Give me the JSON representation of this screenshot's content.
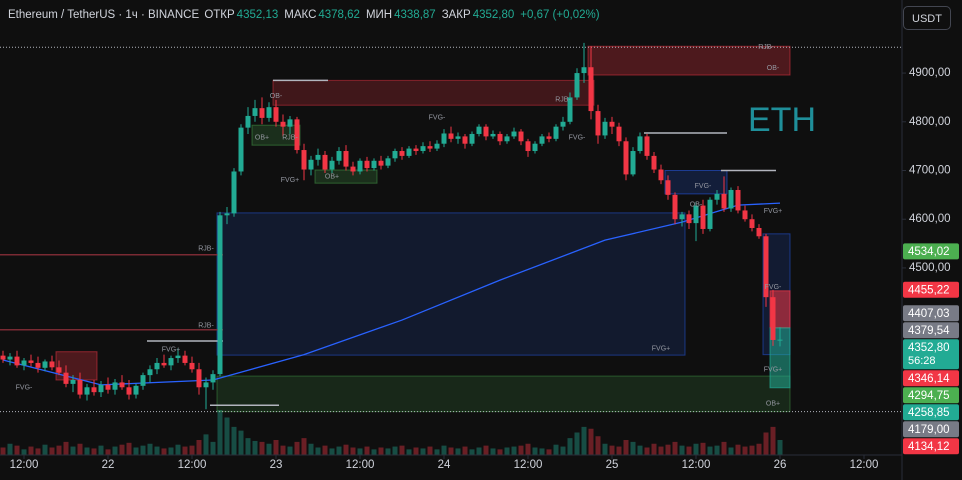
{
  "chart_data": {
    "type": "candlestick",
    "title": "Ethereum / TetherUS · 1ч · BINANCE",
    "ohlc_header": [
      {
        "label": "ОТКР",
        "value": "4352,13"
      },
      {
        "label": "МАКС",
        "value": "4378,62"
      },
      {
        "label": "МИН",
        "value": "4338,87"
      },
      {
        "label": "ЗАКР",
        "value": "4352,80"
      }
    ],
    "change": "+0,67 (+0,02%)",
    "currency_button": "USDT",
    "watermark": "ETH",
    "up_color": "#22ab94",
    "down_color": "#f23645",
    "ylim": [
      4116,
      5050
    ],
    "yticks": [
      {
        "value": 4500,
        "label": "4500,00"
      },
      {
        "value": 4600,
        "label": "4600,00"
      },
      {
        "value": 4700,
        "label": "4700,00"
      },
      {
        "value": 4800,
        "label": "4800,00"
      },
      {
        "value": 4900,
        "label": "4900,00"
      }
    ],
    "xticks": [
      {
        "value": 3,
        "label": "12:00"
      },
      {
        "value": 15,
        "label": "22"
      },
      {
        "value": 27,
        "label": "12:00"
      },
      {
        "value": 39,
        "label": "23"
      },
      {
        "value": 51,
        "label": "12:00"
      },
      {
        "value": 63,
        "label": "24"
      },
      {
        "value": 75,
        "label": "12:00"
      },
      {
        "value": 87,
        "label": "25"
      },
      {
        "value": 99,
        "label": "12:00"
      },
      {
        "value": 111,
        "label": "26"
      },
      {
        "value": 123,
        "label": "12:00"
      }
    ],
    "candles": [
      [
        4320,
        4330,
        4305,
        4312
      ],
      [
        4312,
        4325,
        4300,
        4318
      ],
      [
        4318,
        4330,
        4295,
        4300
      ],
      [
        4300,
        4315,
        4290,
        4310
      ],
      [
        4310,
        4322,
        4298,
        4305
      ],
      [
        4305,
        4318,
        4285,
        4295
      ],
      [
        4295,
        4312,
        4288,
        4308
      ],
      [
        4308,
        4320,
        4290,
        4296
      ],
      [
        4296,
        4310,
        4280,
        4285
      ],
      [
        4285,
        4300,
        4255,
        4262
      ],
      [
        4262,
        4280,
        4245,
        4270
      ],
      [
        4270,
        4285,
        4232,
        4240
      ],
      [
        4240,
        4262,
        4228,
        4255
      ],
      [
        4255,
        4270,
        4238,
        4245
      ],
      [
        4245,
        4268,
        4235,
        4260
      ],
      [
        4260,
        4275,
        4242,
        4250
      ],
      [
        4250,
        4272,
        4240,
        4265
      ],
      [
        4265,
        4280,
        4250,
        4255
      ],
      [
        4255,
        4270,
        4230,
        4240
      ],
      [
        4240,
        4262,
        4232,
        4258
      ],
      [
        4258,
        4285,
        4250,
        4280
      ],
      [
        4280,
        4300,
        4265,
        4292
      ],
      [
        4292,
        4315,
        4282,
        4305
      ],
      [
        4305,
        4322,
        4295,
        4300
      ],
      [
        4300,
        4320,
        4290,
        4315
      ],
      [
        4315,
        4335,
        4305,
        4320
      ],
      [
        4320,
        4330,
        4300,
        4305
      ],
      [
        4305,
        4318,
        4285,
        4292
      ],
      [
        4292,
        4305,
        4240,
        4255
      ],
      [
        4255,
        4275,
        4210,
        4265
      ],
      [
        4265,
        4290,
        4250,
        4282
      ],
      [
        4282,
        4615,
        4278,
        4608
      ],
      [
        4608,
        4625,
        4590,
        4612
      ],
      [
        4612,
        4705,
        4605,
        4698
      ],
      [
        4698,
        4795,
        4690,
        4788
      ],
      [
        4788,
        4830,
        4775,
        4812
      ],
      [
        4812,
        4845,
        4800,
        4828
      ],
      [
        4828,
        4850,
        4795,
        4808
      ],
      [
        4808,
        4840,
        4800,
        4830
      ],
      [
        4830,
        4845,
        4790,
        4800
      ],
      [
        4800,
        4815,
        4770,
        4790
      ],
      [
        4790,
        4812,
        4775,
        4805
      ],
      [
        4805,
        4810,
        4735,
        4742
      ],
      [
        4742,
        4755,
        4680,
        4702
      ],
      [
        4702,
        4730,
        4690,
        4722
      ],
      [
        4722,
        4745,
        4710,
        4732
      ],
      [
        4732,
        4740,
        4695,
        4702
      ],
      [
        4702,
        4728,
        4695,
        4720
      ],
      [
        4720,
        4748,
        4712,
        4740
      ],
      [
        4740,
        4752,
        4700,
        4708
      ],
      [
        4708,
        4718,
        4690,
        4698
      ],
      [
        4698,
        4725,
        4692,
        4720
      ],
      [
        4720,
        4728,
        4698,
        4705
      ],
      [
        4705,
        4725,
        4700,
        4720
      ],
      [
        4720,
        4730,
        4702,
        4710
      ],
      [
        4710,
        4730,
        4705,
        4725
      ],
      [
        4725,
        4745,
        4718,
        4740
      ],
      [
        4740,
        4748,
        4722,
        4730
      ],
      [
        4730,
        4750,
        4726,
        4745
      ],
      [
        4745,
        4752,
        4732,
        4740
      ],
      [
        4740,
        4758,
        4735,
        4750
      ],
      [
        4750,
        4760,
        4738,
        4745
      ],
      [
        4745,
        4762,
        4740,
        4755
      ],
      [
        4755,
        4785,
        4748,
        4776
      ],
      [
        4776,
        4790,
        4758,
        4765
      ],
      [
        4765,
        4778,
        4755,
        4770
      ],
      [
        4770,
        4775,
        4745,
        4755
      ],
      [
        4755,
        4780,
        4750,
        4775
      ],
      [
        4775,
        4795,
        4770,
        4790
      ],
      [
        4790,
        4795,
        4762,
        4770
      ],
      [
        4770,
        4782,
        4765,
        4775
      ],
      [
        4775,
        4780,
        4752,
        4760
      ],
      [
        4760,
        4775,
        4755,
        4770
      ],
      [
        4770,
        4788,
        4765,
        4780
      ],
      [
        4780,
        4785,
        4752,
        4760
      ],
      [
        4760,
        4765,
        4728,
        4740
      ],
      [
        4740,
        4760,
        4735,
        4755
      ],
      [
        4755,
        4775,
        4750,
        4770
      ],
      [
        4770,
        4778,
        4758,
        4765
      ],
      [
        4765,
        4795,
        4760,
        4790
      ],
      [
        4790,
        4810,
        4782,
        4800
      ],
      [
        4800,
        4860,
        4795,
        4850
      ],
      [
        4850,
        4910,
        4845,
        4900
      ],
      [
        4900,
        4962,
        4880,
        4912
      ],
      [
        4912,
        4955,
        4805,
        4822
      ],
      [
        4822,
        4835,
        4755,
        4772
      ],
      [
        4772,
        4808,
        4765,
        4800
      ],
      [
        4800,
        4810,
        4775,
        4790
      ],
      [
        4790,
        4798,
        4750,
        4760
      ],
      [
        4760,
        4768,
        4680,
        4692
      ],
      [
        4692,
        4748,
        4688,
        4740
      ],
      [
        4740,
        4778,
        4735,
        4770
      ],
      [
        4770,
        4775,
        4722,
        4730
      ],
      [
        4730,
        4738,
        4695,
        4702
      ],
      [
        4702,
        4712,
        4672,
        4680
      ],
      [
        4680,
        4690,
        4640,
        4650
      ],
      [
        4650,
        4655,
        4590,
        4600
      ],
      [
        4600,
        4615,
        4585,
        4610
      ],
      [
        4610,
        4618,
        4580,
        4592
      ],
      [
        4592,
        4635,
        4555,
        4628
      ],
      [
        4628,
        4640,
        4570,
        4580
      ],
      [
        4580,
        4645,
        4575,
        4640
      ],
      [
        4640,
        4660,
        4630,
        4652
      ],
      [
        4652,
        4688,
        4615,
        4622
      ],
      [
        4622,
        4665,
        4615,
        4660
      ],
      [
        4660,
        4668,
        4612,
        4618
      ],
      [
        4618,
        4628,
        4595,
        4600
      ],
      [
        4600,
        4610,
        4575,
        4582
      ],
      [
        4582,
        4590,
        4560,
        4565
      ],
      [
        4565,
        4570,
        4420,
        4440
      ],
      [
        4440,
        4455,
        4340,
        4352.13
      ],
      [
        4352.13,
        4378.62,
        4338.87,
        4352.8
      ]
    ],
    "volume": [
      8,
      12,
      10,
      6,
      9,
      7,
      11,
      8,
      10,
      14,
      9,
      12,
      8,
      7,
      10,
      6,
      9,
      11,
      13,
      8,
      10,
      12,
      9,
      7,
      8,
      11,
      9,
      10,
      16,
      22,
      14,
      48,
      40,
      30,
      26,
      18,
      15,
      14,
      12,
      16,
      10,
      9,
      14,
      18,
      12,
      8,
      10,
      7,
      9,
      11,
      8,
      7,
      9,
      6,
      8,
      7,
      9,
      10,
      6,
      8,
      7,
      9,
      6,
      10,
      8,
      7,
      9,
      6,
      8,
      10,
      7,
      6,
      8,
      9,
      10,
      12,
      8,
      7,
      6,
      11,
      9,
      18,
      24,
      30,
      28,
      20,
      12,
      10,
      9,
      16,
      14,
      10,
      8,
      12,
      9,
      11,
      14,
      10,
      9,
      12,
      13,
      9,
      10,
      14,
      8,
      11,
      9,
      10,
      12,
      24,
      30,
      16
    ],
    "ma": {
      "index": [
        0,
        14,
        30,
        43,
        57,
        71,
        86,
        97,
        105,
        111
      ],
      "values": [
        4311,
        4260,
        4270,
        4322,
        4393,
        4475,
        4557,
        4594,
        4629,
        4633
      ]
    },
    "zones": [
      {
        "from": 31,
        "to": 97,
        "top": 4613,
        "bottom": 4321,
        "color": "rgba(41,98,255,0.13)",
        "border": "rgba(41,98,255,0.45)"
      },
      {
        "from": 31,
        "to": 112,
        "top": 4278,
        "bottom": 4205,
        "color": "rgba(76,175,80,0.16)",
        "border": "rgba(76,175,80,0.4)"
      },
      {
        "from": 84,
        "to": 112,
        "top": 4955,
        "bottom": 4896,
        "color": "rgba(242,54,69,0.28)",
        "border": "rgba(242,54,69,0.5)"
      },
      {
        "from": 39,
        "to": 84,
        "top": 4885,
        "bottom": 4834,
        "color": "rgba(242,54,69,0.22)",
        "border": "rgba(242,54,69,0.45)"
      },
      {
        "from": 95,
        "to": 103,
        "top": 4700,
        "bottom": 4652,
        "color": "rgba(41,98,255,0.18)",
        "border": "rgba(41,98,255,0.5)"
      },
      {
        "from": 109,
        "to": 112,
        "top": 4570,
        "bottom": 4322,
        "color": "rgba(41,98,255,0.15)",
        "border": "rgba(41,98,255,0.45)"
      },
      {
        "from": 8,
        "to": 13,
        "top": 4328,
        "bottom": 4270,
        "color": "rgba(242,54,69,0.28)",
        "border": "rgba(242,54,69,0.5)"
      },
      {
        "from": 36,
        "to": 42,
        "top": 4793,
        "bottom": 4752,
        "color": "rgba(76,175,80,0.2)",
        "border": "rgba(76,175,80,0.45)"
      },
      {
        "from": 45,
        "to": 53,
        "top": 4701,
        "bottom": 4674,
        "color": "rgba(76,175,80,0.2)",
        "border": "rgba(76,175,80,0.45)"
      },
      {
        "from": 110,
        "to": 112,
        "top": 4453,
        "bottom": 4377,
        "color": "rgba(242,54,69,0.55)",
        "border": "rgba(242,54,69,0.7)"
      },
      {
        "from": 110,
        "to": 112,
        "top": 4377,
        "bottom": 4254,
        "color": "rgba(34,171,148,0.55)",
        "border": "rgba(34,171,148,0.7)"
      }
    ],
    "levels": [
      {
        "price": 4527,
        "from": 0,
        "to": 31,
        "color": "#7a2a33"
      },
      {
        "price": 4373,
        "from": 0,
        "to": 31,
        "color": "#7a2a33"
      },
      {
        "price": 4885,
        "from": 39,
        "to": 46,
        "color": "#b2b5be"
      },
      {
        "price": 4777,
        "from": 92,
        "to": 103,
        "color": "#b2b5be"
      },
      {
        "price": 4700,
        "from": 103,
        "to": 110,
        "color": "#b2b5be"
      },
      {
        "price": 4350,
        "from": 21,
        "to": 31,
        "color": "#b2b5be"
      },
      {
        "price": 4218,
        "from": 30,
        "to": 39,
        "color": "#b2b5be"
      }
    ],
    "dotted_levels": [
      4953,
      4205
    ],
    "annotations": [
      {
        "text": "RJB-",
        "i": 109,
        "price": 4953
      },
      {
        "text": "OB-",
        "i": 110,
        "price": 4910
      },
      {
        "text": "FVG+",
        "i": 24,
        "price": 4332
      },
      {
        "text": "FVG-",
        "i": 3,
        "price": 4254
      },
      {
        "text": "RJB-",
        "i": 29,
        "price": 4540
      },
      {
        "text": "RJB-",
        "i": 29,
        "price": 4381
      },
      {
        "text": "OB-",
        "i": 39,
        "price": 4853
      },
      {
        "text": "RJB-",
        "i": 41,
        "price": 4767
      },
      {
        "text": "OB+",
        "i": 37,
        "price": 4767
      },
      {
        "text": "FVG+",
        "i": 41,
        "price": 4680
      },
      {
        "text": "OB+",
        "i": 47,
        "price": 4687
      },
      {
        "text": "FVG-",
        "i": 62,
        "price": 4808
      },
      {
        "text": "RJB-",
        "i": 80,
        "price": 4845
      },
      {
        "text": "FVG-",
        "i": 82,
        "price": 4767
      },
      {
        "text": "FVG+",
        "i": 94,
        "price": 4334
      },
      {
        "text": "FVG-",
        "i": 100,
        "price": 4668
      },
      {
        "text": "OB-",
        "i": 99,
        "price": 4630
      },
      {
        "text": "FVG+",
        "i": 110,
        "price": 4617
      },
      {
        "text": "FVG+",
        "i": 110,
        "price": 4291
      },
      {
        "text": "OB+",
        "i": 110,
        "price": 4221
      },
      {
        "text": "FVG-",
        "i": 110,
        "price": 4461
      }
    ],
    "price_labels": [
      {
        "value": 4534.02,
        "label": "4534,02",
        "color": "#4caf50"
      },
      {
        "value": 4455.22,
        "label": "4455,22",
        "color": "#f23645"
      },
      {
        "value": 4407.03,
        "label": "4407,03",
        "color": "#787b86"
      },
      {
        "value": 4379.54,
        "label": "4379,54",
        "color": "#787b86"
      },
      {
        "value": 4352.8,
        "label": "4352,80",
        "color": "#22ab94",
        "countdown": "56:28"
      },
      {
        "value": 4346.14,
        "label": "4346,14",
        "color": "#f23645"
      },
      {
        "value": 4294.75,
        "label": "4294,75",
        "color": "#4caf50"
      },
      {
        "value": 4258.85,
        "label": "4258,85",
        "color": "#22ab94"
      },
      {
        "value": 4179,
        "label": "4179,00",
        "color": "#787b86"
      },
      {
        "value": 4134.12,
        "label": "4134,12",
        "color": "#f23645"
      }
    ]
  }
}
